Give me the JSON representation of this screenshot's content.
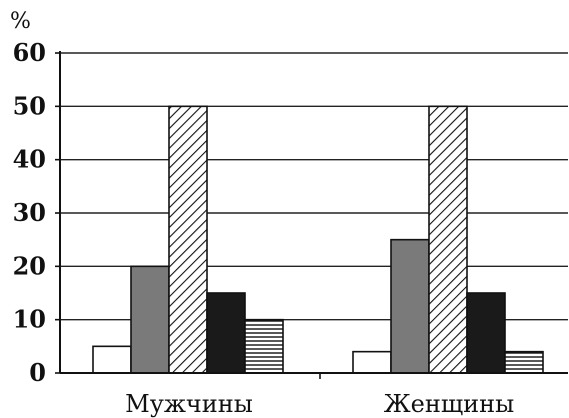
{
  "chart_data": {
    "type": "bar",
    "ylabel": "%",
    "ylim": [
      0,
      60
    ],
    "yticks": [
      0,
      10,
      20,
      30,
      40,
      50,
      60
    ],
    "grid": true,
    "categories": [
      "Мужчины",
      "Женщины"
    ],
    "series": [
      {
        "values": [
          5,
          4
        ],
        "fill": "white"
      },
      {
        "values": [
          20,
          25
        ],
        "fill": "gray"
      },
      {
        "values": [
          50,
          50
        ],
        "fill": "diagonal-hatch"
      },
      {
        "values": [
          15,
          15
        ],
        "fill": "black"
      },
      {
        "values": [
          10,
          4
        ],
        "fill": "horizontal-lines"
      }
    ]
  },
  "colors": {
    "gray": "#7a7a7a",
    "black": "#1a1a1a",
    "axis": "#111111",
    "grid": "#222222"
  }
}
